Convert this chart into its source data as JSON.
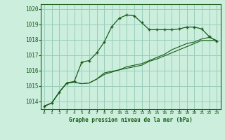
{
  "background_color": "#cceedd",
  "grid_color": "#99ccbb",
  "line_color": "#1a5c1a",
  "ylim": [
    1013.5,
    1020.3
  ],
  "xlim": [
    -0.5,
    23.5
  ],
  "yticks": [
    1014,
    1015,
    1016,
    1017,
    1018,
    1019,
    1020
  ],
  "xticks": [
    0,
    1,
    2,
    3,
    4,
    5,
    6,
    7,
    8,
    9,
    10,
    11,
    12,
    13,
    14,
    15,
    16,
    17,
    18,
    19,
    20,
    21,
    22,
    23
  ],
  "xlabel": "Graphe pression niveau de la mer (hPa)",
  "series1": [
    1013.7,
    1013.9,
    1014.6,
    1015.2,
    1015.25,
    1015.15,
    1015.2,
    1015.45,
    1015.75,
    1015.9,
    1016.05,
    1016.15,
    1016.25,
    1016.35,
    1016.6,
    1016.75,
    1016.95,
    1017.15,
    1017.35,
    1017.55,
    1017.75,
    1017.95,
    1017.95,
    1017.95
  ],
  "series2": [
    1013.7,
    1013.9,
    1014.6,
    1015.2,
    1015.25,
    1015.15,
    1015.2,
    1015.45,
    1015.85,
    1015.95,
    1016.05,
    1016.25,
    1016.35,
    1016.45,
    1016.65,
    1016.85,
    1017.05,
    1017.35,
    1017.55,
    1017.75,
    1017.85,
    1018.05,
    1018.15,
    1017.95
  ],
  "series3": [
    1013.7,
    1013.9,
    1014.6,
    1015.2,
    1015.3,
    1016.55,
    1016.65,
    1017.15,
    1017.85,
    1018.85,
    1019.4,
    1019.6,
    1019.55,
    1019.1,
    1018.65,
    1018.65,
    1018.65,
    1018.65,
    1018.7,
    1018.82,
    1018.82,
    1018.7,
    1018.2,
    1017.9
  ]
}
